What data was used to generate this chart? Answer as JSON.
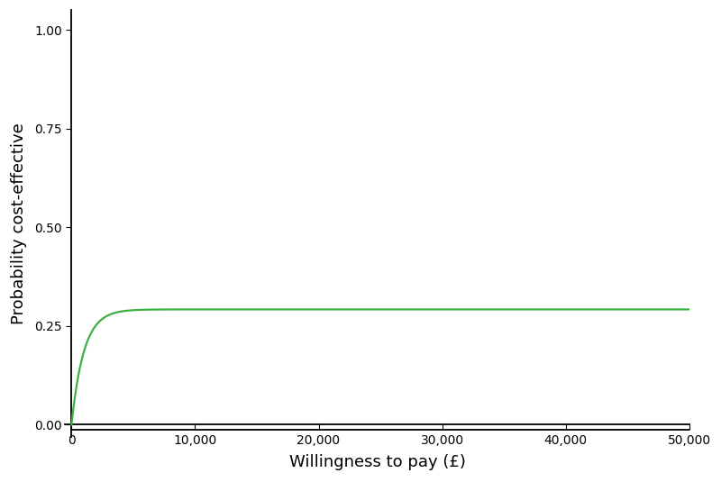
{
  "title": "",
  "xlabel": "Willingness to pay (£)",
  "ylabel": "Probability cost-effective",
  "xlim": [
    -500,
    50000
  ],
  "ylim": [
    -0.03,
    1.05
  ],
  "yticks": [
    0.0,
    0.25,
    0.5,
    0.75,
    1.0
  ],
  "xticks": [
    0,
    10000,
    20000,
    30000,
    40000,
    50000
  ],
  "xtick_labels": [
    "0",
    "10,000",
    "20,000",
    "30,000",
    "40,000",
    "50,000"
  ],
  "ytick_labels": [
    "0.00",
    "0.25",
    "0.50",
    "0.75",
    "1.00"
  ],
  "line_color": "#3cb043",
  "line_color2": "#000000",
  "line_width": 1.6,
  "flat_line_y": -0.012,
  "curve_asymptote": 0.292,
  "curve_rise_rate": 0.0018,
  "background_color": "#ffffff",
  "font_size": 12
}
